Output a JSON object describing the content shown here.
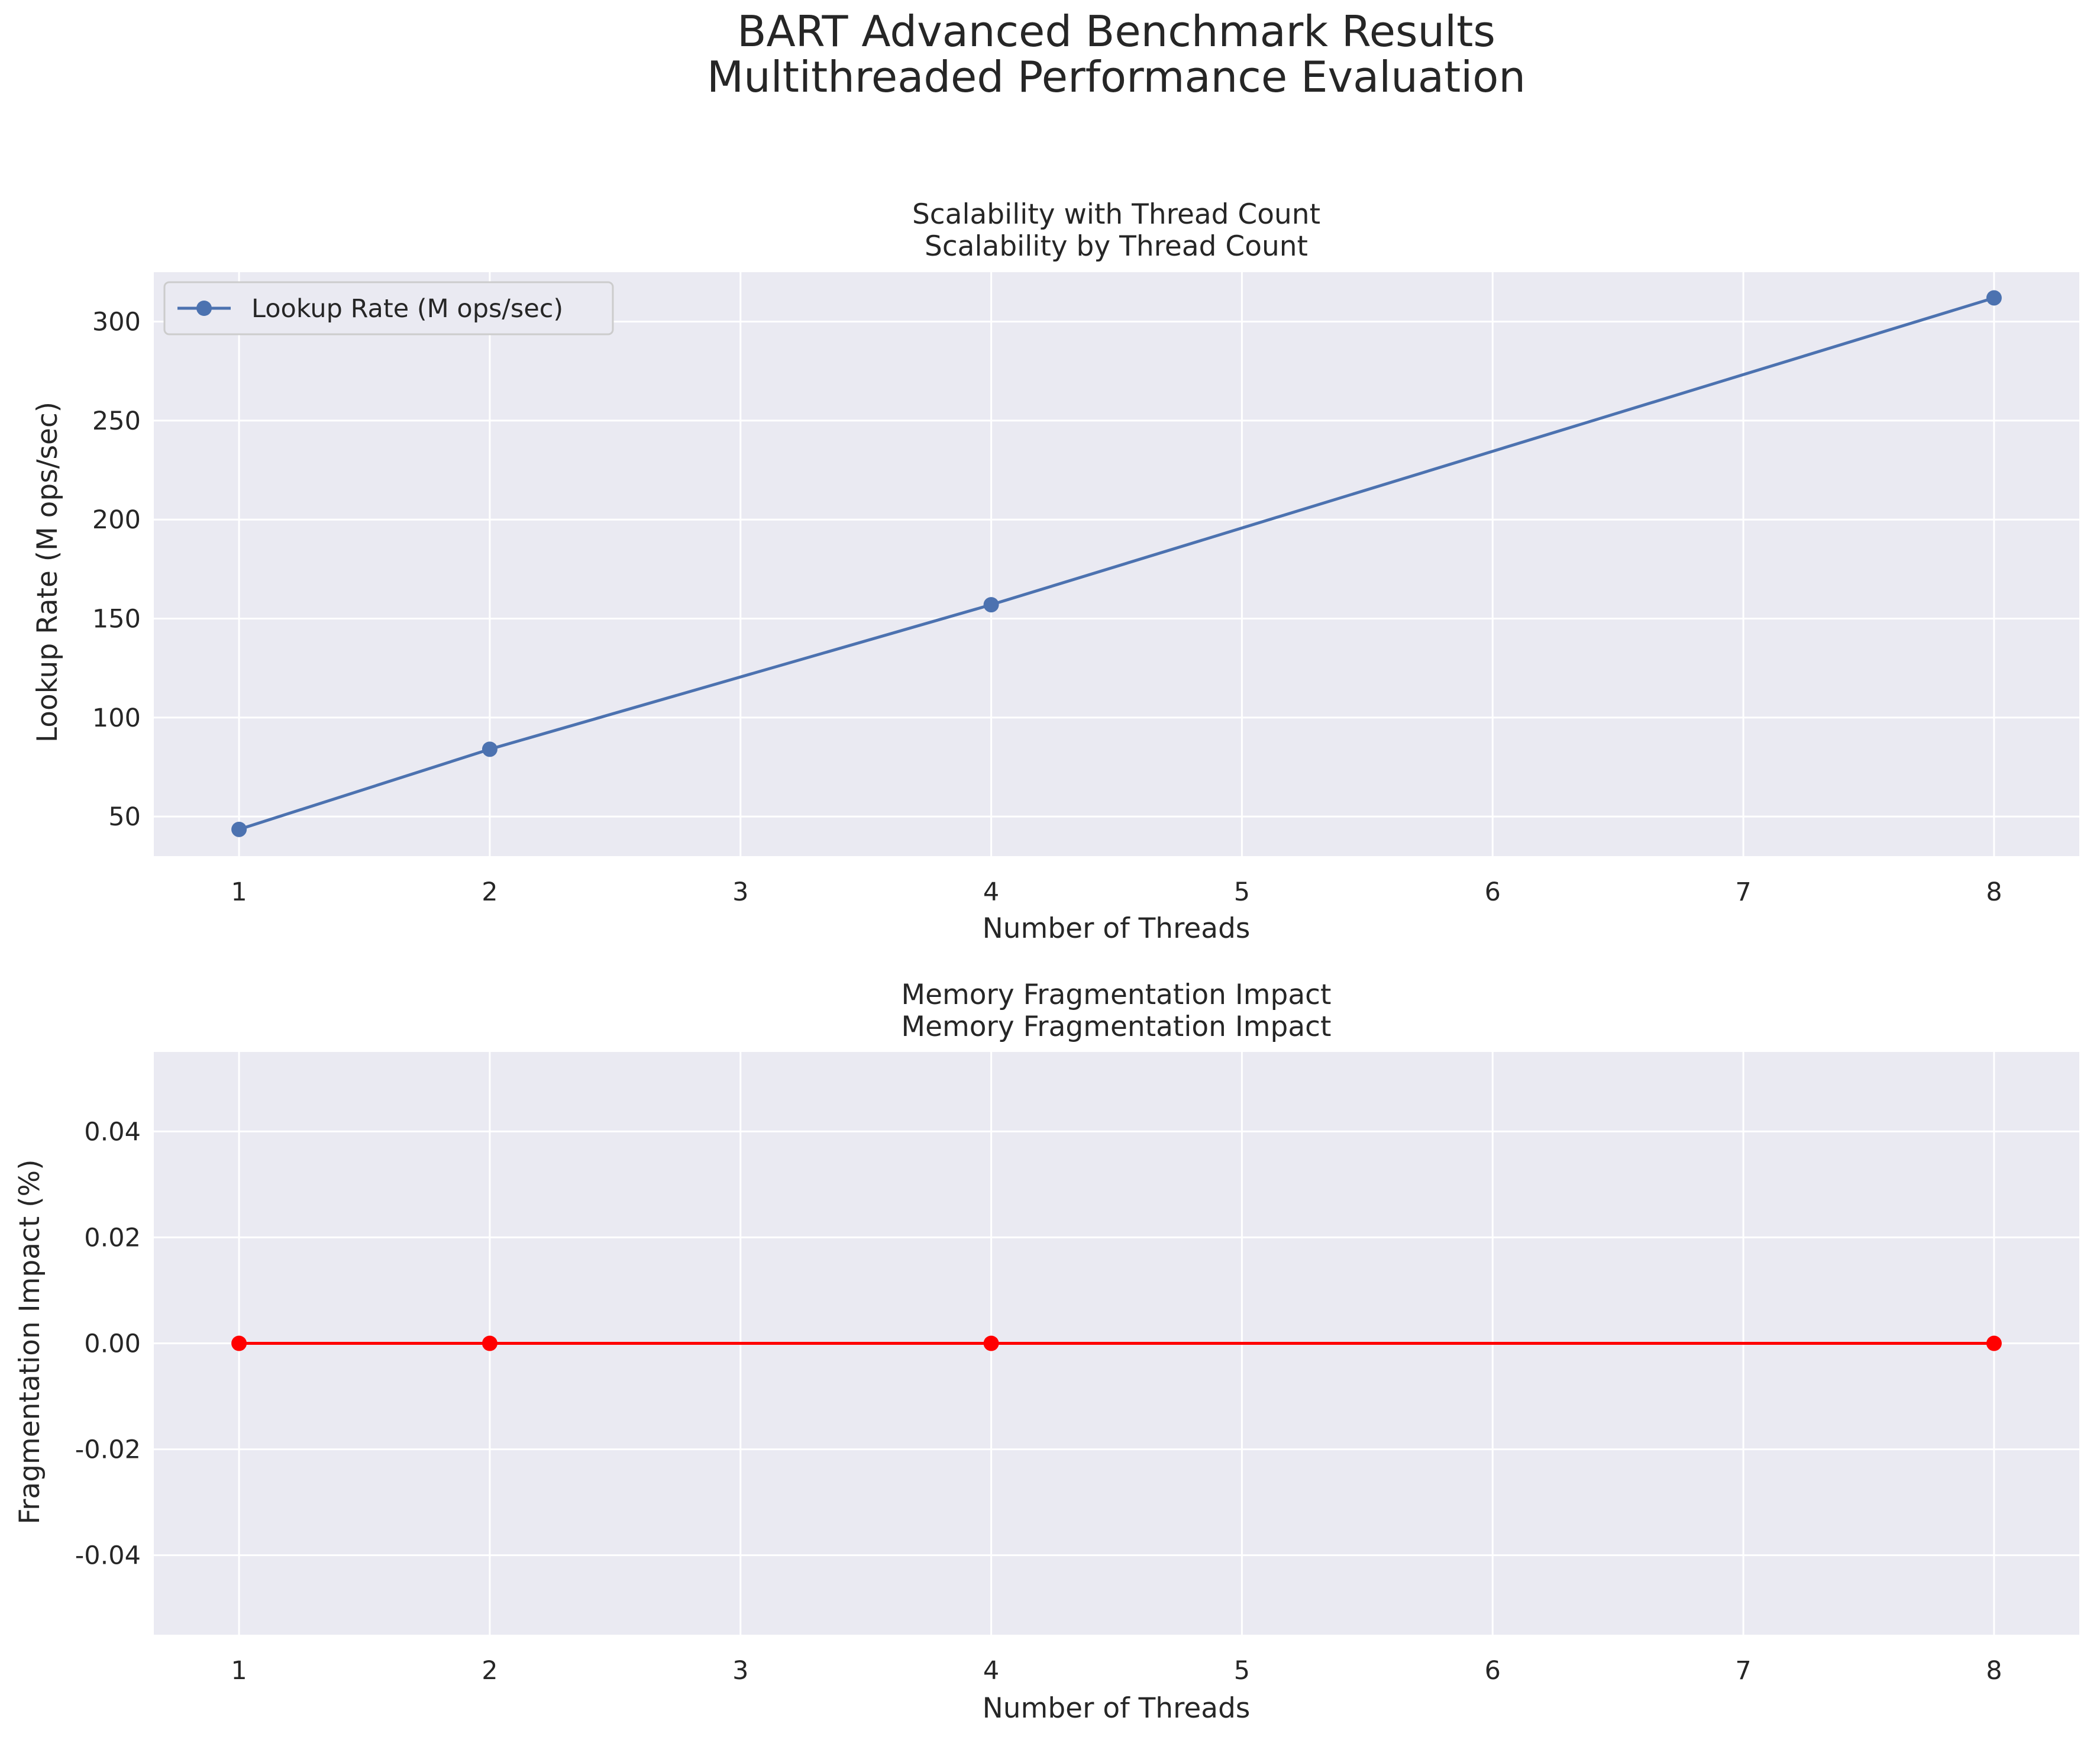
{
  "figure": {
    "title_line1": "BART Advanced Benchmark Results",
    "title_line2": "Multithreaded Performance Evaluation"
  },
  "chart_data": [
    {
      "type": "line",
      "title_line1": "Scalability with Thread Count",
      "title_line2": "Scalability by Thread Count",
      "xlabel": "Number of Threads",
      "ylabel": "Lookup Rate (M ops/sec)",
      "x": [
        1,
        2,
        4,
        8
      ],
      "series": [
        {
          "name": "Lookup Rate (M ops/sec)",
          "values": [
            43.5,
            84,
            157,
            312
          ],
          "color": "#4c72b0"
        }
      ],
      "xlim": [
        0.66,
        8.34
      ],
      "ylim": [
        30,
        325
      ],
      "xticks": [
        "1",
        "2",
        "3",
        "4",
        "5",
        "6",
        "7",
        "8"
      ],
      "yticks": [
        "50",
        "100",
        "150",
        "200",
        "250",
        "300"
      ],
      "legend": "top-left",
      "grid": true
    },
    {
      "type": "line",
      "title_line1": "Memory Fragmentation Impact",
      "title_line2": "Memory Fragmentation Impact",
      "xlabel": "Number of Threads",
      "ylabel": "Fragmentation Impact (%)",
      "x": [
        1,
        2,
        4,
        8
      ],
      "series": [
        {
          "values": [
            0,
            0,
            0,
            0
          ],
          "color": "#ff0000"
        }
      ],
      "xlim": [
        0.66,
        8.34
      ],
      "ylim": [
        -0.055,
        0.055
      ],
      "xticks": [
        "1",
        "2",
        "3",
        "4",
        "5",
        "6",
        "7",
        "8"
      ],
      "yticks": [
        "0.04",
        "0.02",
        "0.00",
        "-0.02",
        "-0.04"
      ],
      "grid": true
    }
  ],
  "colors": {
    "axes_bg": "#eaeaf2",
    "grid": "#ffffff",
    "text": "#262626"
  }
}
